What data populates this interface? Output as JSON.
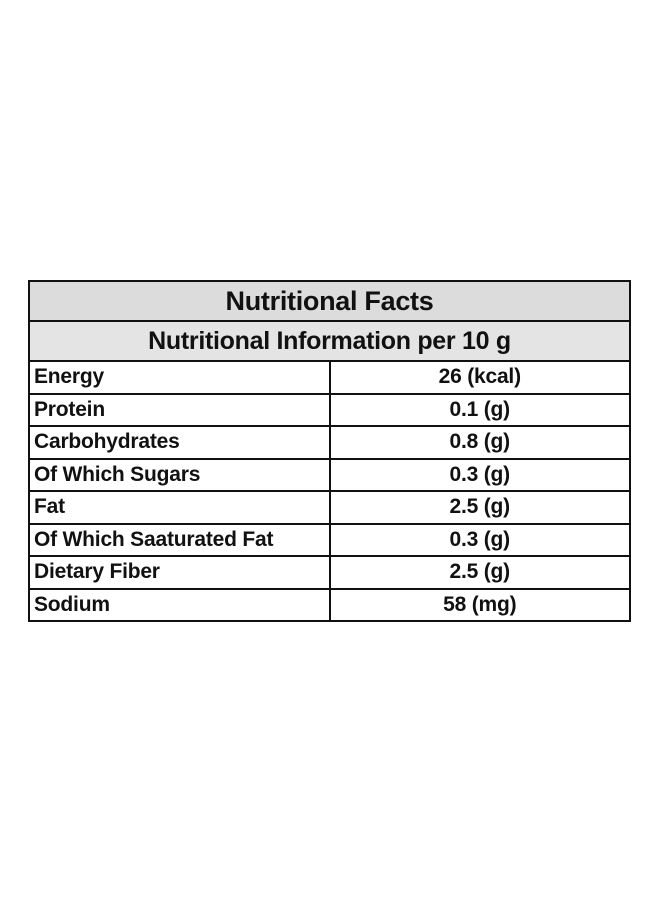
{
  "table": {
    "title": "Nutritional Facts",
    "subtitle": "Nutritional Information per 10 g",
    "rows": [
      {
        "name": "Energy",
        "value": "26 (kcal)"
      },
      {
        "name": "Protein",
        "value": "0.1 (g)"
      },
      {
        "name": "Carbohydrates",
        "value": "0.8 (g)"
      },
      {
        "name": "Of Which Sugars",
        "value": "0.3 (g)"
      },
      {
        "name": "Fat",
        "value": "2.5 (g)"
      },
      {
        "name": "Of Which Saaturated Fat",
        "value": "0.3 (g)"
      },
      {
        "name": "Dietary Fiber",
        "value": "2.5 (g)"
      },
      {
        "name": "Sodium",
        "value": "58 (mg)"
      }
    ]
  },
  "colors": {
    "header_background": "#dcdcdc",
    "subheader_background": "#e4e4e4",
    "border": "#111111",
    "text": "#111111",
    "page_background": "#ffffff"
  }
}
